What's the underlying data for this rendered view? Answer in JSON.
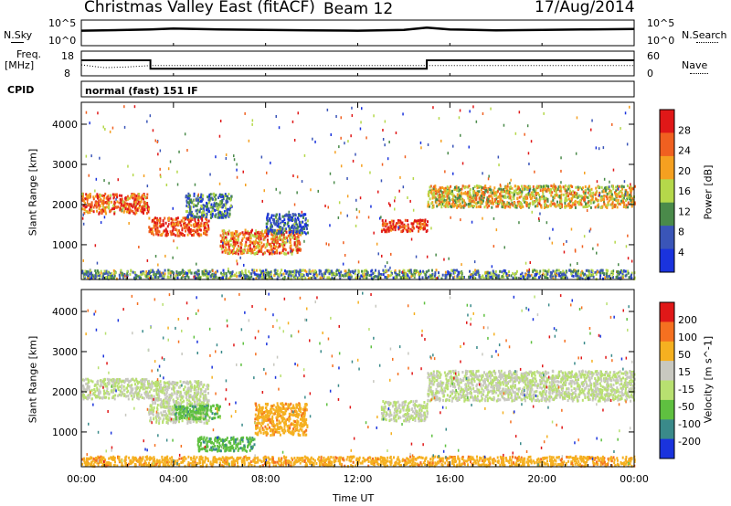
{
  "header": {
    "station": "Christmas Valley East (fitACF)",
    "beam": "Beam 12",
    "date": "17/Aug/2014"
  },
  "noise_panel": {
    "left_label": "N.Sky",
    "right_label": "N.Search",
    "left_ticks": [
      "10^5",
      "10^0"
    ],
    "right_ticks": [
      "10^5",
      "10^0"
    ]
  },
  "freq_panel": {
    "left_label_1": "Freq.",
    "left_label_2": "[MHz]",
    "right_label": "Nave",
    "left_ticks": [
      "18",
      "8"
    ],
    "right_ticks": [
      "60",
      "0"
    ]
  },
  "cpid_panel": {
    "label": "CPID",
    "text": "normal (fast) 151 IF"
  },
  "x_axis": {
    "label": "Time UT",
    "ticks": [
      "00:00",
      "04:00",
      "08:00",
      "12:00",
      "16:00",
      "20:00",
      "00:00"
    ]
  },
  "power_panel": {
    "ylabel": "Slant Range [km]",
    "yticks": [
      "1000",
      "2000",
      "3000",
      "4000"
    ],
    "colorbar_label": "Power [dB]",
    "colorbar_ticks": [
      "4",
      "8",
      "12",
      "16",
      "20",
      "24",
      "28"
    ]
  },
  "velocity_panel": {
    "ylabel": "Slant Range [km]",
    "yticks": [
      "1000",
      "2000",
      "3000",
      "4000"
    ],
    "colorbar_label": "Velocity [m s^-1]",
    "colorbar_ticks": [
      "200",
      "100",
      "50",
      "15",
      "-15",
      "-50",
      "-100",
      "-200"
    ]
  },
  "chart_data": [
    {
      "type": "line",
      "title": "N.Sky / N.Search",
      "y_scale": "log",
      "ylim": [
        1,
        100000
      ],
      "xlim_hours": [
        0,
        24
      ],
      "series": [
        {
          "name": "N.Sky",
          "x": [
            0,
            2,
            3,
            4,
            6,
            8,
            10,
            12,
            14,
            15,
            16,
            18,
            20,
            22,
            24
          ],
          "y": [
            1000,
            1500,
            2000,
            3000,
            2000,
            1500,
            1200,
            1000,
            1500,
            5000,
            2000,
            1200,
            1500,
            2000,
            2500
          ]
        }
      ]
    },
    {
      "type": "line",
      "title": "Freq. [MHz] / Nave",
      "xlim_hours": [
        0,
        24
      ],
      "series": [
        {
          "name": "Freq. [MHz]",
          "x": [
            0,
            3,
            3,
            15,
            15,
            24
          ],
          "y": [
            14.5,
            14.5,
            10.5,
            10.5,
            14.5,
            14.5
          ],
          "ylim": [
            8,
            18
          ]
        },
        {
          "name": "Nave",
          "x": [
            0,
            1,
            2,
            3,
            24
          ],
          "y": [
            26,
            18,
            20,
            24,
            24
          ],
          "ylim": [
            0,
            60
          ]
        }
      ]
    },
    {
      "type": "heatmap",
      "title": "Power [dB]",
      "xlabel": "Time UT",
      "ylabel": "Slant Range [km]",
      "ylim": [
        180,
        4500
      ],
      "xlim_hours": [
        0,
        24
      ],
      "colorscale": [
        [
          "4",
          "#1a33dd"
        ],
        [
          "8",
          "#3a55b8"
        ],
        [
          "12",
          "#4a8a4a"
        ],
        [
          "16",
          "#b5d84a"
        ],
        [
          "20",
          "#f5a020"
        ],
        [
          "24",
          "#f06020"
        ],
        [
          "28",
          "#e01818"
        ]
      ],
      "echo_regions": [
        {
          "t0": 0.0,
          "t1": 2.9,
          "r0": 1800,
          "r1": 2300,
          "power": 24
        },
        {
          "t0": 2.9,
          "t1": 5.5,
          "r0": 1250,
          "r1": 1700,
          "power": 26
        },
        {
          "t0": 4.5,
          "t1": 6.5,
          "r0": 1700,
          "r1": 2300,
          "power": 10
        },
        {
          "t0": 6.0,
          "t1": 9.5,
          "r0": 800,
          "r1": 1400,
          "power": 22
        },
        {
          "t0": 8.0,
          "t1": 9.8,
          "r0": 1300,
          "r1": 1800,
          "power": 8
        },
        {
          "t0": 13.0,
          "t1": 15.0,
          "r0": 1350,
          "r1": 1650,
          "power": 26
        },
        {
          "t0": 15.0,
          "t1": 24.0,
          "r0": 1950,
          "r1": 2500,
          "power": 18
        },
        {
          "t0": 0.0,
          "t1": 24.0,
          "r0": 180,
          "r1": 400,
          "power": 12
        }
      ]
    },
    {
      "type": "heatmap",
      "title": "Velocity [m s^-1]",
      "xlabel": "Time UT",
      "ylabel": "Slant Range [km]",
      "ylim": [
        180,
        4500
      ],
      "xlim_hours": [
        0,
        24
      ],
      "colorscale": [
        [
          "200",
          "#1a33dd"
        ],
        [
          "100",
          "#3a8a8a"
        ],
        [
          "50",
          "#5fc040"
        ],
        [
          "15",
          "#b8e070"
        ],
        [
          "-15",
          "#c8c8c0"
        ],
        [
          "-50",
          "#f5b020"
        ],
        [
          "-100",
          "#f57020"
        ],
        [
          "-200",
          "#e01818"
        ]
      ],
      "echo_regions": [
        {
          "t0": 0.0,
          "t1": 2.9,
          "r0": 1850,
          "r1": 2350,
          "velocity": 0
        },
        {
          "t0": 2.9,
          "t1": 5.5,
          "r0": 1250,
          "r1": 2300,
          "velocity": 0
        },
        {
          "t0": 4.0,
          "t1": 6.0,
          "r0": 1350,
          "r1": 1700,
          "velocity": 60
        },
        {
          "t0": 5.0,
          "t1": 7.5,
          "r0": 550,
          "r1": 900,
          "velocity": 60
        },
        {
          "t0": 7.5,
          "t1": 9.8,
          "r0": 950,
          "r1": 1750,
          "velocity": -60
        },
        {
          "t0": 13.0,
          "t1": 15.0,
          "r0": 1300,
          "r1": 1800,
          "velocity": 0
        },
        {
          "t0": 15.0,
          "t1": 24.0,
          "r0": 1800,
          "r1": 2550,
          "velocity": 0
        },
        {
          "t0": 0.0,
          "t1": 24.0,
          "r0": 180,
          "r1": 420,
          "velocity": -60
        }
      ]
    }
  ]
}
